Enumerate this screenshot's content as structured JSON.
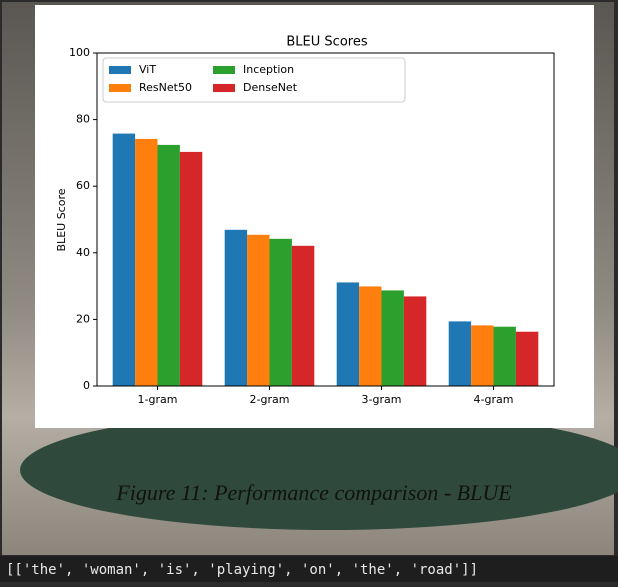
{
  "chart_data": {
    "type": "bar",
    "title": "BLEU Scores",
    "y_label": "BLEU Score",
    "categories": [
      "1-gram",
      "2-gram",
      "3-gram",
      "4-gram"
    ],
    "series": [
      {
        "name": "ViT",
        "color": "#1f77b4",
        "values": [
          75.8,
          46.9,
          31.1,
          19.4
        ]
      },
      {
        "name": "ResNet50",
        "color": "#ff7f0e",
        "values": [
          74.2,
          45.4,
          29.9,
          18.2
        ]
      },
      {
        "name": "Inception",
        "color": "#2ca02c",
        "values": [
          72.4,
          44.2,
          28.7,
          17.8
        ]
      },
      {
        "name": "DenseNet",
        "color": "#d62728",
        "values": [
          70.3,
          42.1,
          26.9,
          16.3
        ]
      }
    ],
    "ylim": [
      0,
      100
    ],
    "yticks": [
      0,
      20,
      40,
      60,
      80,
      100
    ],
    "legend": "upper left"
  },
  "caption": "Figure 11: Performance comparison - BLUE",
  "output_text": "[['the', 'woman', 'is', 'playing', 'on', 'the', 'road']]"
}
